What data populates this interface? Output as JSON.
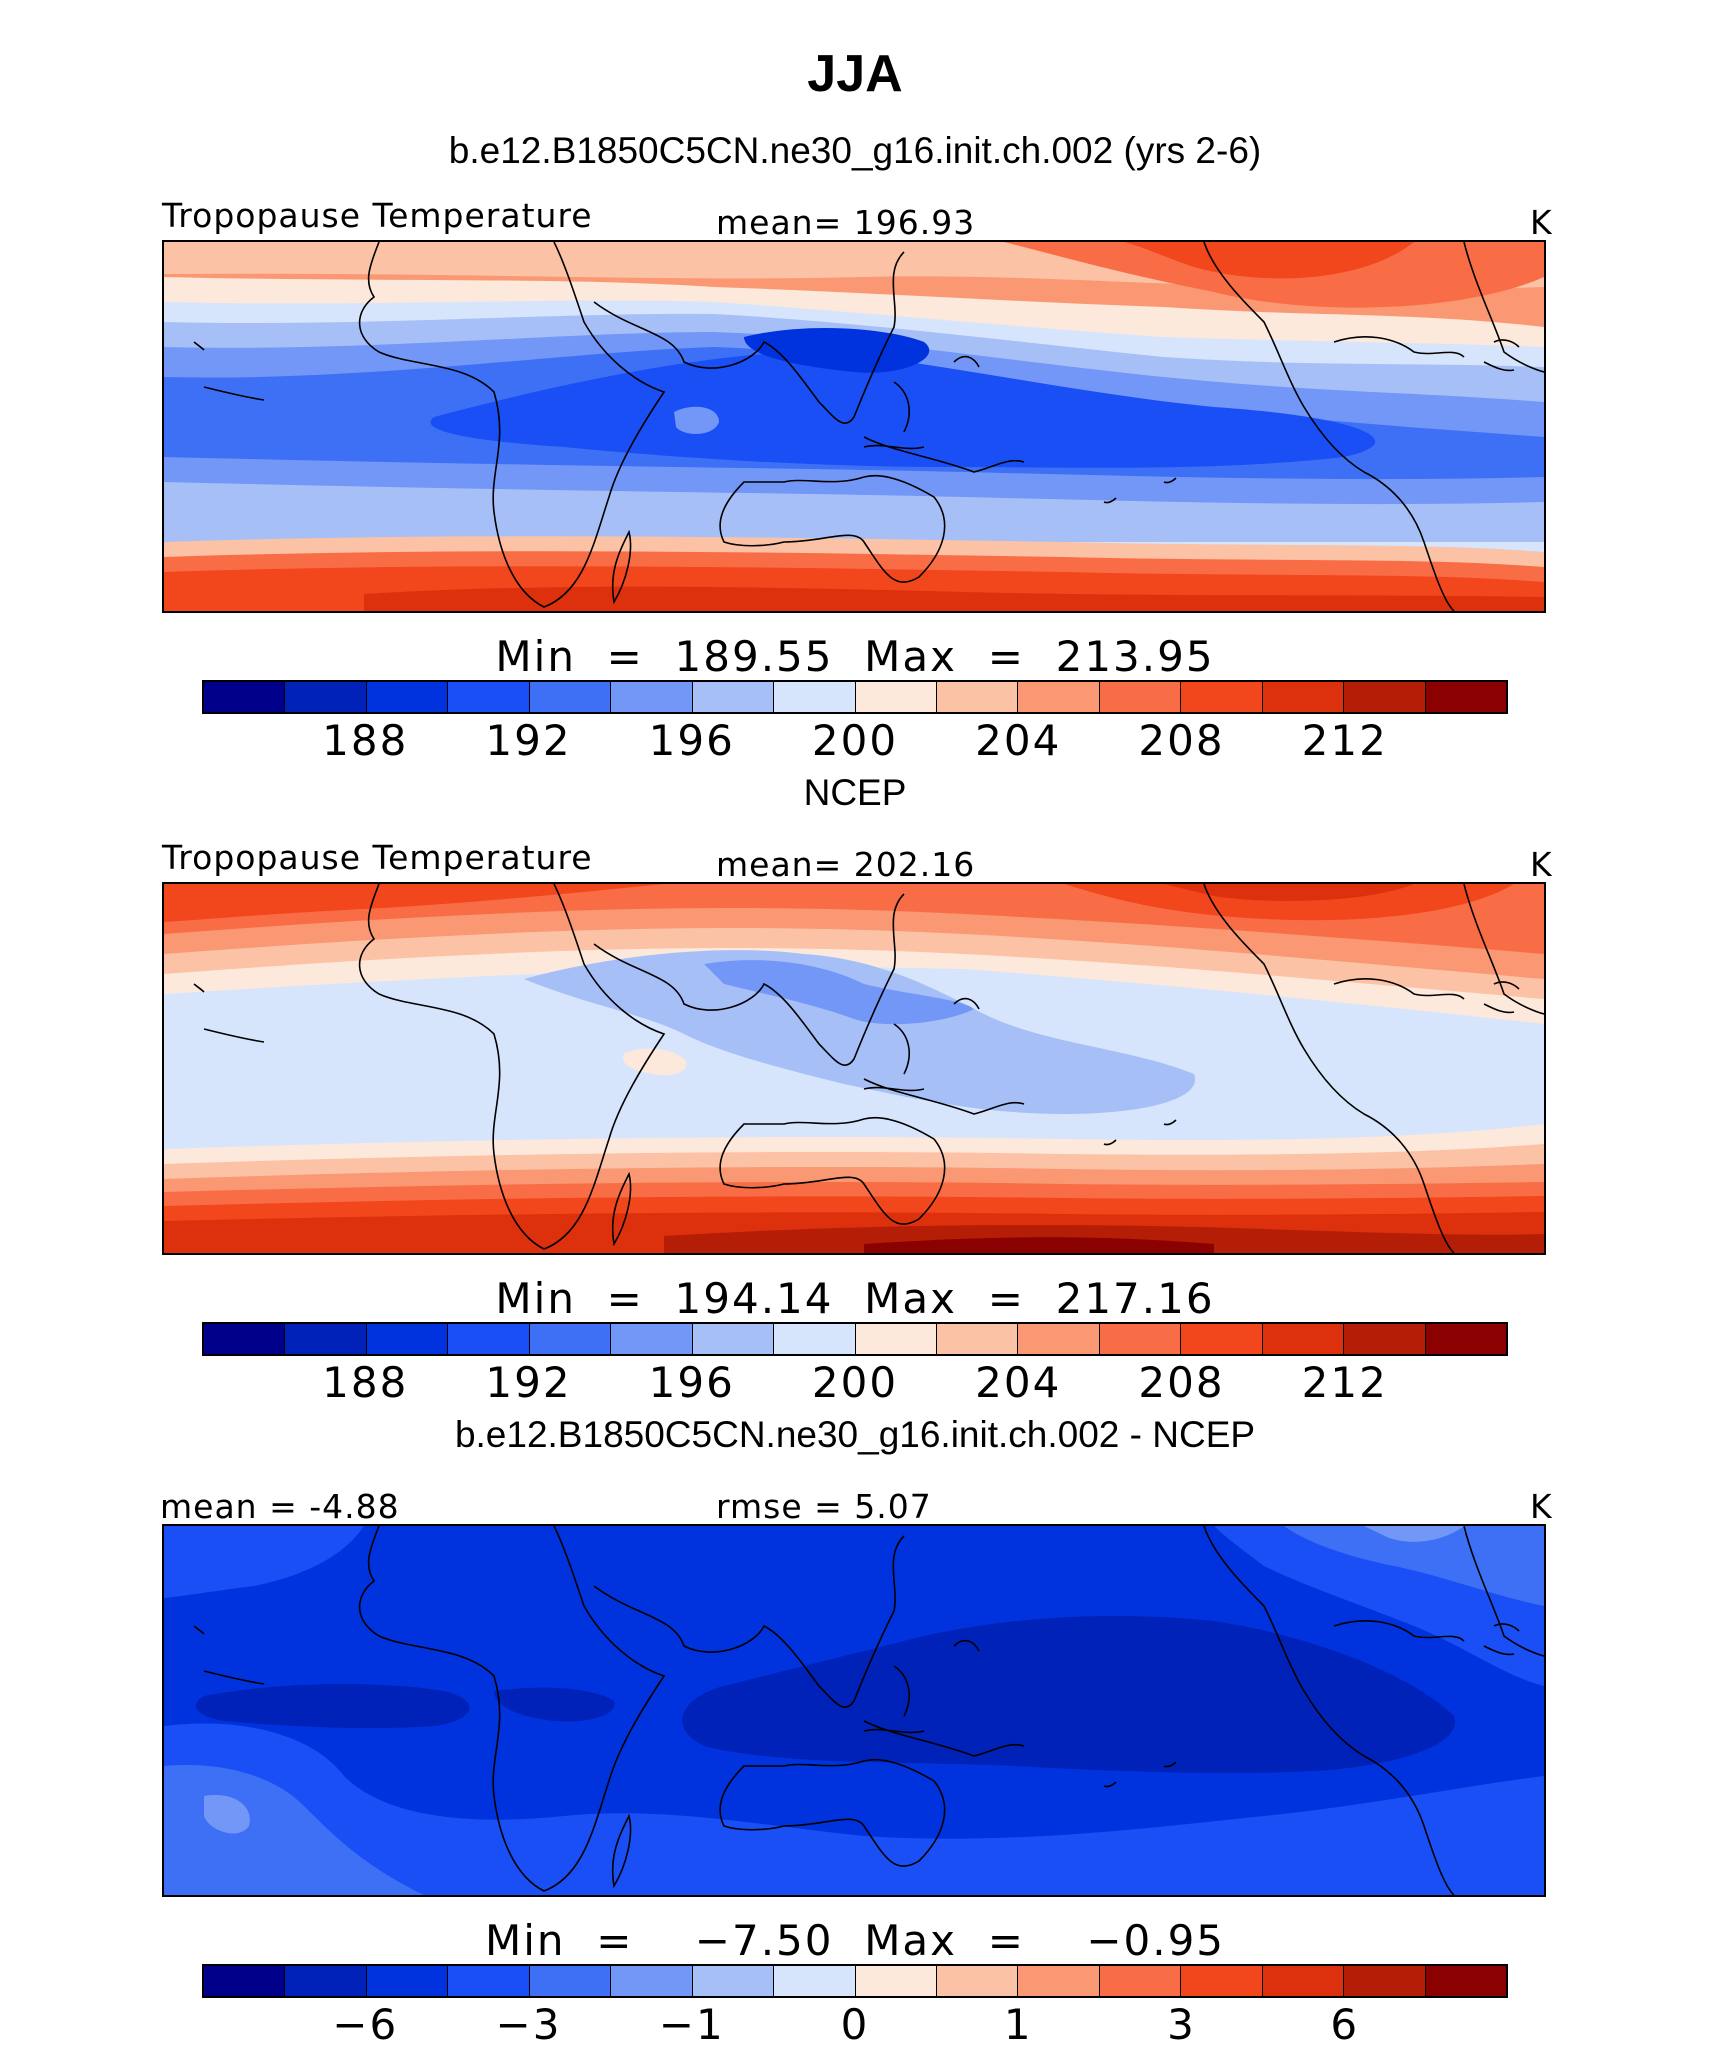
{
  "title": "JJA",
  "palette": [
    "#00008b",
    "#0022b8",
    "#0033dd",
    "#1a4ff5",
    "#3e70f5",
    "#7397f7",
    "#a6c0f7",
    "#d6e5fb",
    "#fde8dc",
    "#fcc2a6",
    "#f99872",
    "#f96d46",
    "#f2461d",
    "#dd300c",
    "#b41d06",
    "#8b0000"
  ],
  "panels": [
    {
      "subtitle": "b.e12.B1850C5CN.ne30_g16.init.ch.002 (yrs 2-6)",
      "left_label": "Tropopause  Temperature",
      "center_label": "mean=  196.93",
      "right_label": "K",
      "minmax": "Min  =  189.55  Max  =  213.95",
      "colorbar_ticks": [
        "188",
        "192",
        "196",
        "200",
        "204",
        "208",
        "212"
      ]
    },
    {
      "subtitle": "NCEP",
      "left_label": "Tropopause  Temperature",
      "center_label": "mean=  202.16",
      "right_label": "K",
      "minmax": "Min  =  194.14  Max  =  217.16",
      "colorbar_ticks": [
        "188",
        "192",
        "196",
        "200",
        "204",
        "208",
        "212"
      ]
    },
    {
      "subtitle": "b.e12.B1850C5CN.ne30_g16.init.ch.002 - NCEP",
      "left_label": "mean  =    -4.88",
      "center_label": "rmse  =      5.07",
      "right_label": "K",
      "minmax": "Min  =    −7.50  Max  =    −0.95",
      "colorbar_ticks": [
        "−6",
        "−3",
        "−1",
        "0",
        "1",
        "3",
        "6"
      ]
    }
  ],
  "chart_data": [
    {
      "type": "heatmap",
      "title": "Tropopause  Temperature",
      "subtitle": "b.e12.B1850C5CN.ne30_g16.init.ch.002 (yrs 2-6)",
      "units": "K",
      "mean": 196.93,
      "min": 189.55,
      "max": 213.95,
      "levels": [
        186,
        188,
        190,
        192,
        194,
        196,
        198,
        200,
        202,
        204,
        206,
        208,
        210,
        212,
        214
      ],
      "colorbar_labels": [
        188,
        192,
        196,
        200,
        204,
        208,
        212
      ],
      "pattern": "cold tropical band (~190-194 K) over Indian Ocean and western Pacific; warm (>208 K) southern high latitudes; warm patch over North Pacific"
    },
    {
      "type": "heatmap",
      "title": "Tropopause  Temperature",
      "subtitle": "NCEP",
      "units": "K",
      "mean": 202.16,
      "min": 194.14,
      "max": 217.16,
      "levels": [
        186,
        188,
        190,
        192,
        194,
        196,
        198,
        200,
        202,
        204,
        206,
        208,
        210,
        212,
        214
      ],
      "colorbar_labels": [
        188,
        192,
        196,
        200,
        204,
        208,
        212
      ],
      "pattern": "tropics ~196-200 K with minimum over Asian monsoon / western Pacific; warm (>210 K) southern and northern high latitudes"
    },
    {
      "type": "heatmap",
      "subtitle": "b.e12.B1850C5CN.ne30_g16.init.ch.002 - NCEP",
      "units": "K",
      "mean": -4.88,
      "rmse": 5.07,
      "min": -7.5,
      "max": -0.95,
      "levels": [
        -8,
        -6,
        -4,
        -3,
        -2,
        -1,
        -0.5,
        0,
        0.5,
        1,
        2,
        3,
        4,
        6,
        8
      ],
      "colorbar_labels": [
        -6,
        -3,
        -1,
        0,
        1,
        3,
        6
      ],
      "pattern": "negative everywhere; strongest cold bias (~-6 to -7.5 K) over tropical Pacific and Indian Ocean"
    }
  ]
}
